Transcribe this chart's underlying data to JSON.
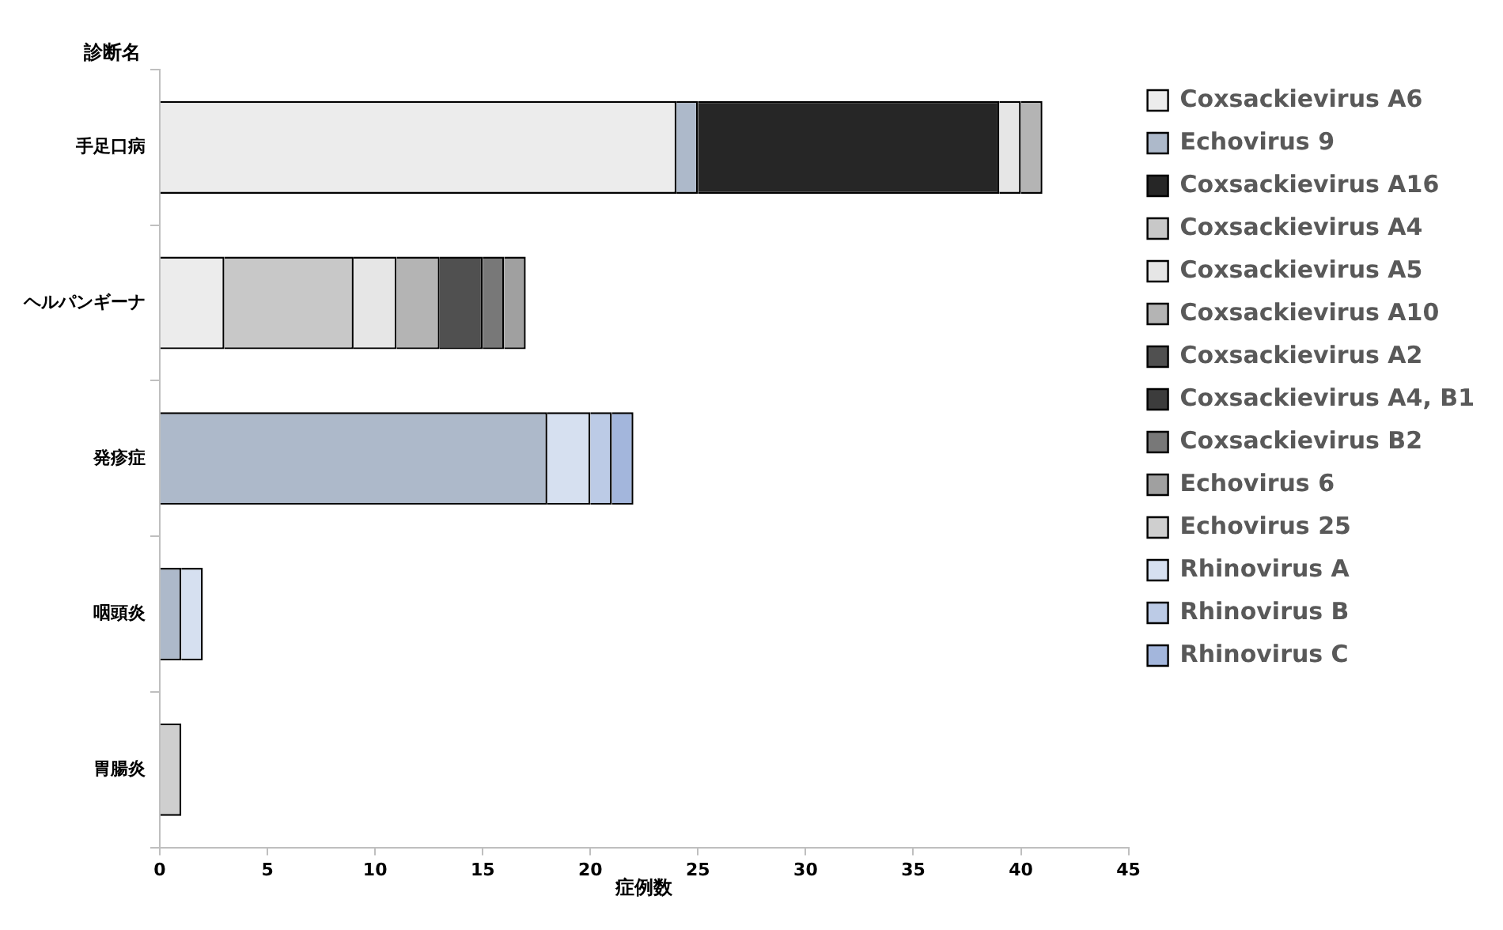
{
  "chart_data": {
    "type": "bar",
    "orientation": "horizontal",
    "stacked": true,
    "ylabel": "診断名",
    "xlabel": "症例数",
    "categories": [
      "手足口病",
      "ヘルパンギーナ",
      "発疹症",
      "咽頭炎",
      "胃腸炎"
    ],
    "xlim": [
      0,
      45
    ],
    "xticks": [
      0,
      5,
      10,
      15,
      20,
      25,
      30,
      35,
      40,
      45
    ],
    "grid": false,
    "legend": "right",
    "series": [
      {
        "name": "Coxsackievirus A6",
        "color": "#ececec",
        "values": [
          24,
          3,
          null,
          null,
          null
        ]
      },
      {
        "name": "Echovirus 9",
        "color": "#adb9ca",
        "values": [
          1,
          null,
          18,
          1,
          null
        ]
      },
      {
        "name": "Coxsackievirus A16",
        "color": "#262626",
        "values": [
          14,
          null,
          null,
          null,
          null
        ]
      },
      {
        "name": "Coxsackievirus A4",
        "color": "#c8c8c8",
        "values": [
          null,
          6,
          null,
          null,
          null
        ]
      },
      {
        "name": "Coxsackievirus A5",
        "color": "#e6e6e6",
        "values": [
          1,
          2,
          null,
          null,
          null
        ]
      },
      {
        "name": "Coxsackievirus A10",
        "color": "#b4b4b4",
        "values": [
          1,
          2,
          null,
          null,
          null
        ]
      },
      {
        "name": "Coxsackievirus A2",
        "color": "#505050",
        "values": [
          null,
          2,
          null,
          null,
          null
        ]
      },
      {
        "name": "Coxsackievirus A4, B1",
        "color": "#3c3c3c",
        "values": [
          null,
          null,
          null,
          null,
          null
        ]
      },
      {
        "name": "Coxsackievirus B2",
        "color": "#787878",
        "values": [
          null,
          1,
          null,
          null,
          null
        ]
      },
      {
        "name": "Echovirus 6",
        "color": "#a0a0a0",
        "values": [
          null,
          1,
          null,
          null,
          null
        ]
      },
      {
        "name": "Echovirus 25",
        "color": "#cfcfcf",
        "values": [
          null,
          null,
          null,
          null,
          1
        ]
      },
      {
        "name": "Rhinovirus A",
        "color": "#d6e0f0",
        "values": [
          null,
          null,
          2,
          1,
          null
        ]
      },
      {
        "name": "Rhinovirus B",
        "color": "#bccbe6",
        "values": [
          null,
          null,
          1,
          null,
          null
        ]
      },
      {
        "name": "Rhinovirus C",
        "color": "#a3b6dc",
        "values": [
          null,
          null,
          1,
          null,
          null
        ]
      }
    ]
  }
}
